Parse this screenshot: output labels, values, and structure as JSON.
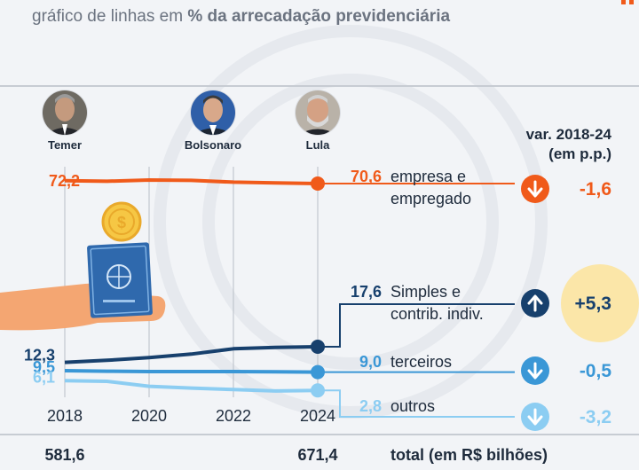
{
  "subtitle": {
    "prefix": "gráfico de linhas em ",
    "bold": "% da arrecadação previdenciária"
  },
  "presidents": [
    {
      "name": "Temer"
    },
    {
      "name": "Bolsonaro"
    },
    {
      "name": "Lula"
    }
  ],
  "variation_header": [
    "var. 2018-24",
    "(em p.p.)"
  ],
  "total": {
    "label": "total (em R$ bilhões)",
    "start": "581,6",
    "end": "671,4"
  },
  "colors": {
    "orange": "#f05a1a",
    "navy": "#17406d",
    "mid_blue": "#3a97d6",
    "light_blue": "#8ccdf2",
    "var_highlight": "#fbe6a8",
    "grid": "#b8bec7",
    "text": "#1e2b3c"
  },
  "chart_data": {
    "type": "line",
    "x": [
      2018,
      2019,
      2020,
      2021,
      2022,
      2023,
      2024
    ],
    "xticks": [
      "2018",
      "2020",
      "2022",
      "2024"
    ],
    "ylabel": "% da arrecadação previdenciária",
    "ylim": [
      0,
      80
    ],
    "series": [
      {
        "id": "empresa",
        "name_lines": [
          "empresa e",
          "empregado"
        ],
        "color": "orange",
        "values": [
          72.2,
          71.9,
          72.6,
          72.4,
          71.4,
          71.0,
          70.6
        ],
        "start_label": "72,2",
        "end_label": "70,6",
        "variation": "-1,6",
        "direction": "down"
      },
      {
        "id": "simples",
        "name_lines": [
          "Simples e",
          "contrib. indiv."
        ],
        "color": "navy",
        "values": [
          12.3,
          13.0,
          13.9,
          15.1,
          16.9,
          17.4,
          17.6
        ],
        "start_label": "12,3",
        "end_label": "17,6",
        "variation": "+5,3",
        "direction": "up"
      },
      {
        "id": "terceiros",
        "name_lines": [
          "terceiros"
        ],
        "color": "mid_blue",
        "values": [
          9.5,
          9.3,
          9.2,
          9.2,
          9.2,
          9.1,
          9.0
        ],
        "start_label": "9,5",
        "end_label": "9,0",
        "variation": "-0,5",
        "direction": "down"
      },
      {
        "id": "outros",
        "name_lines": [
          "outros"
        ],
        "color": "light_blue",
        "values": [
          6.1,
          5.9,
          4.2,
          3.6,
          3.1,
          2.6,
          2.8
        ],
        "start_label": "6,1",
        "end_label": "2,8",
        "variation": "-3,2",
        "direction": "down"
      }
    ]
  }
}
